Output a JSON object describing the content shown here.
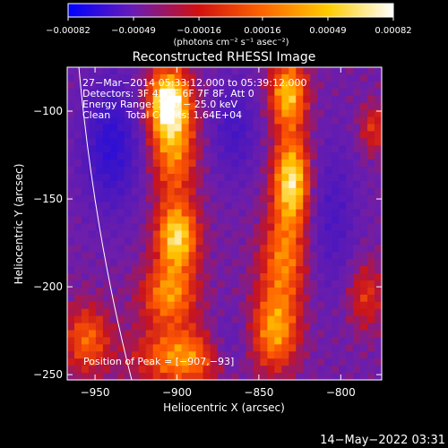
{
  "chart_data": {
    "type": "heatmap",
    "title": "Reconstructed RHESSI Image",
    "xlabel": "Heliocentric X (arcsec)",
    "ylabel": "Heliocentric Y (arcsec)",
    "xlim": [
      -967,
      -775
    ],
    "ylim": [
      -253,
      -75
    ],
    "x_ticks": [
      -950,
      -900,
      -850,
      -800
    ],
    "y_ticks": [
      -100,
      -150,
      -200,
      -250
    ],
    "x_tick_labels": [
      "−950",
      "−900",
      "−850",
      "−800"
    ],
    "y_tick_labels": [
      "−100",
      "−150",
      "−200",
      "−250"
    ],
    "colorbar": {
      "range": [
        -0.00082,
        0.00082
      ],
      "ticks": [
        -0.00082,
        -0.00049,
        -0.00016,
        0.00016,
        0.00049,
        0.00082
      ],
      "tick_labels": [
        "−0.00082",
        "−0.00049",
        "−0.00016",
        "0.00016",
        "0.00049",
        "0.00082"
      ],
      "unit_label": "(photons cm⁻² s⁻¹ asec⁻²)",
      "colors": [
        "#0000ff",
        "#6a1bb5",
        "#d01010",
        "#ff6600",
        "#ffcc00",
        "#ffffff"
      ]
    },
    "annotations": [
      "27−Mar−2014 05:33:12.000 to 05:39:12.000",
      "Detectors: 3F 4F 5F 6F 7F 8F, Att 0",
      "Energy Range: 10.0 − 25.0 keV",
      "Clean     Total Counts: 1.64E+04"
    ],
    "peak_label": "Position of Peak = [−907,−93]",
    "peak": [
      -907,
      -93
    ],
    "sources": [
      {
        "x": -905,
        "y": -95,
        "amp": 1.0,
        "sx": 9,
        "sy": 14
      },
      {
        "x": -902,
        "y": -125,
        "amp": 0.55,
        "sx": 10,
        "sy": 18
      },
      {
        "x": -900,
        "y": -172,
        "amp": 0.85,
        "sx": 9,
        "sy": 14
      },
      {
        "x": -905,
        "y": -205,
        "amp": 0.6,
        "sx": 12,
        "sy": 12
      },
      {
        "x": -896,
        "y": -240,
        "amp": 0.65,
        "sx": 20,
        "sy": 12
      },
      {
        "x": -832,
        "y": -90,
        "amp": 0.75,
        "sx": 8,
        "sy": 14
      },
      {
        "x": -830,
        "y": -140,
        "amp": 0.9,
        "sx": 8,
        "sy": 18
      },
      {
        "x": -835,
        "y": -185,
        "amp": 0.55,
        "sx": 10,
        "sy": 18
      },
      {
        "x": -840,
        "y": -225,
        "amp": 0.65,
        "sx": 10,
        "sy": 16
      },
      {
        "x": -955,
        "y": -230,
        "amp": 0.5,
        "sx": 10,
        "sy": 14
      },
      {
        "x": -785,
        "y": -205,
        "amp": 0.35,
        "sx": 8,
        "sy": 14
      },
      {
        "x": -780,
        "y": -110,
        "amp": 0.35,
        "sx": 6,
        "sy": 10
      }
    ],
    "negatives": [
      {
        "x": -940,
        "y": -120,
        "amp": 0.55,
        "sx": 12,
        "sy": 25
      },
      {
        "x": -865,
        "y": -110,
        "amp": 0.35,
        "sx": 10,
        "sy": 20
      },
      {
        "x": -805,
        "y": -160,
        "amp": 0.3,
        "sx": 10,
        "sy": 30
      },
      {
        "x": -870,
        "y": -235,
        "amp": 0.3,
        "sx": 10,
        "sy": 12
      }
    ]
  },
  "timestamp": "14−May−2022 03:31"
}
